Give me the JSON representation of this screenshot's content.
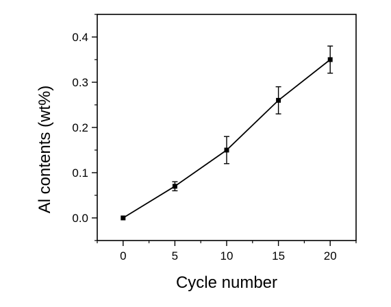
{
  "chart_data": {
    "type": "line",
    "title": "",
    "xlabel": "Cycle number",
    "ylabel": "Al contents (wt%)",
    "xlim": [
      -2.5,
      22.5
    ],
    "ylim": [
      -0.05,
      0.45
    ],
    "x_ticks": [
      0,
      5,
      10,
      15,
      20
    ],
    "y_ticks": [
      0.0,
      0.1,
      0.2,
      0.3,
      0.4
    ],
    "x_tick_labels": [
      "0",
      "5",
      "10",
      "15",
      "20"
    ],
    "y_tick_labels": [
      "0.0",
      "0.1",
      "0.2",
      "0.3",
      "0.4"
    ],
    "grid": false,
    "legend": "none",
    "series": [
      {
        "x": [
          0,
          5,
          10,
          15,
          20
        ],
        "y": [
          0.0,
          0.07,
          0.15,
          0.26,
          0.35
        ],
        "error": [
          0.0,
          0.01,
          0.03,
          0.03,
          0.03
        ],
        "color": "#000000",
        "marker": "square"
      }
    ]
  }
}
